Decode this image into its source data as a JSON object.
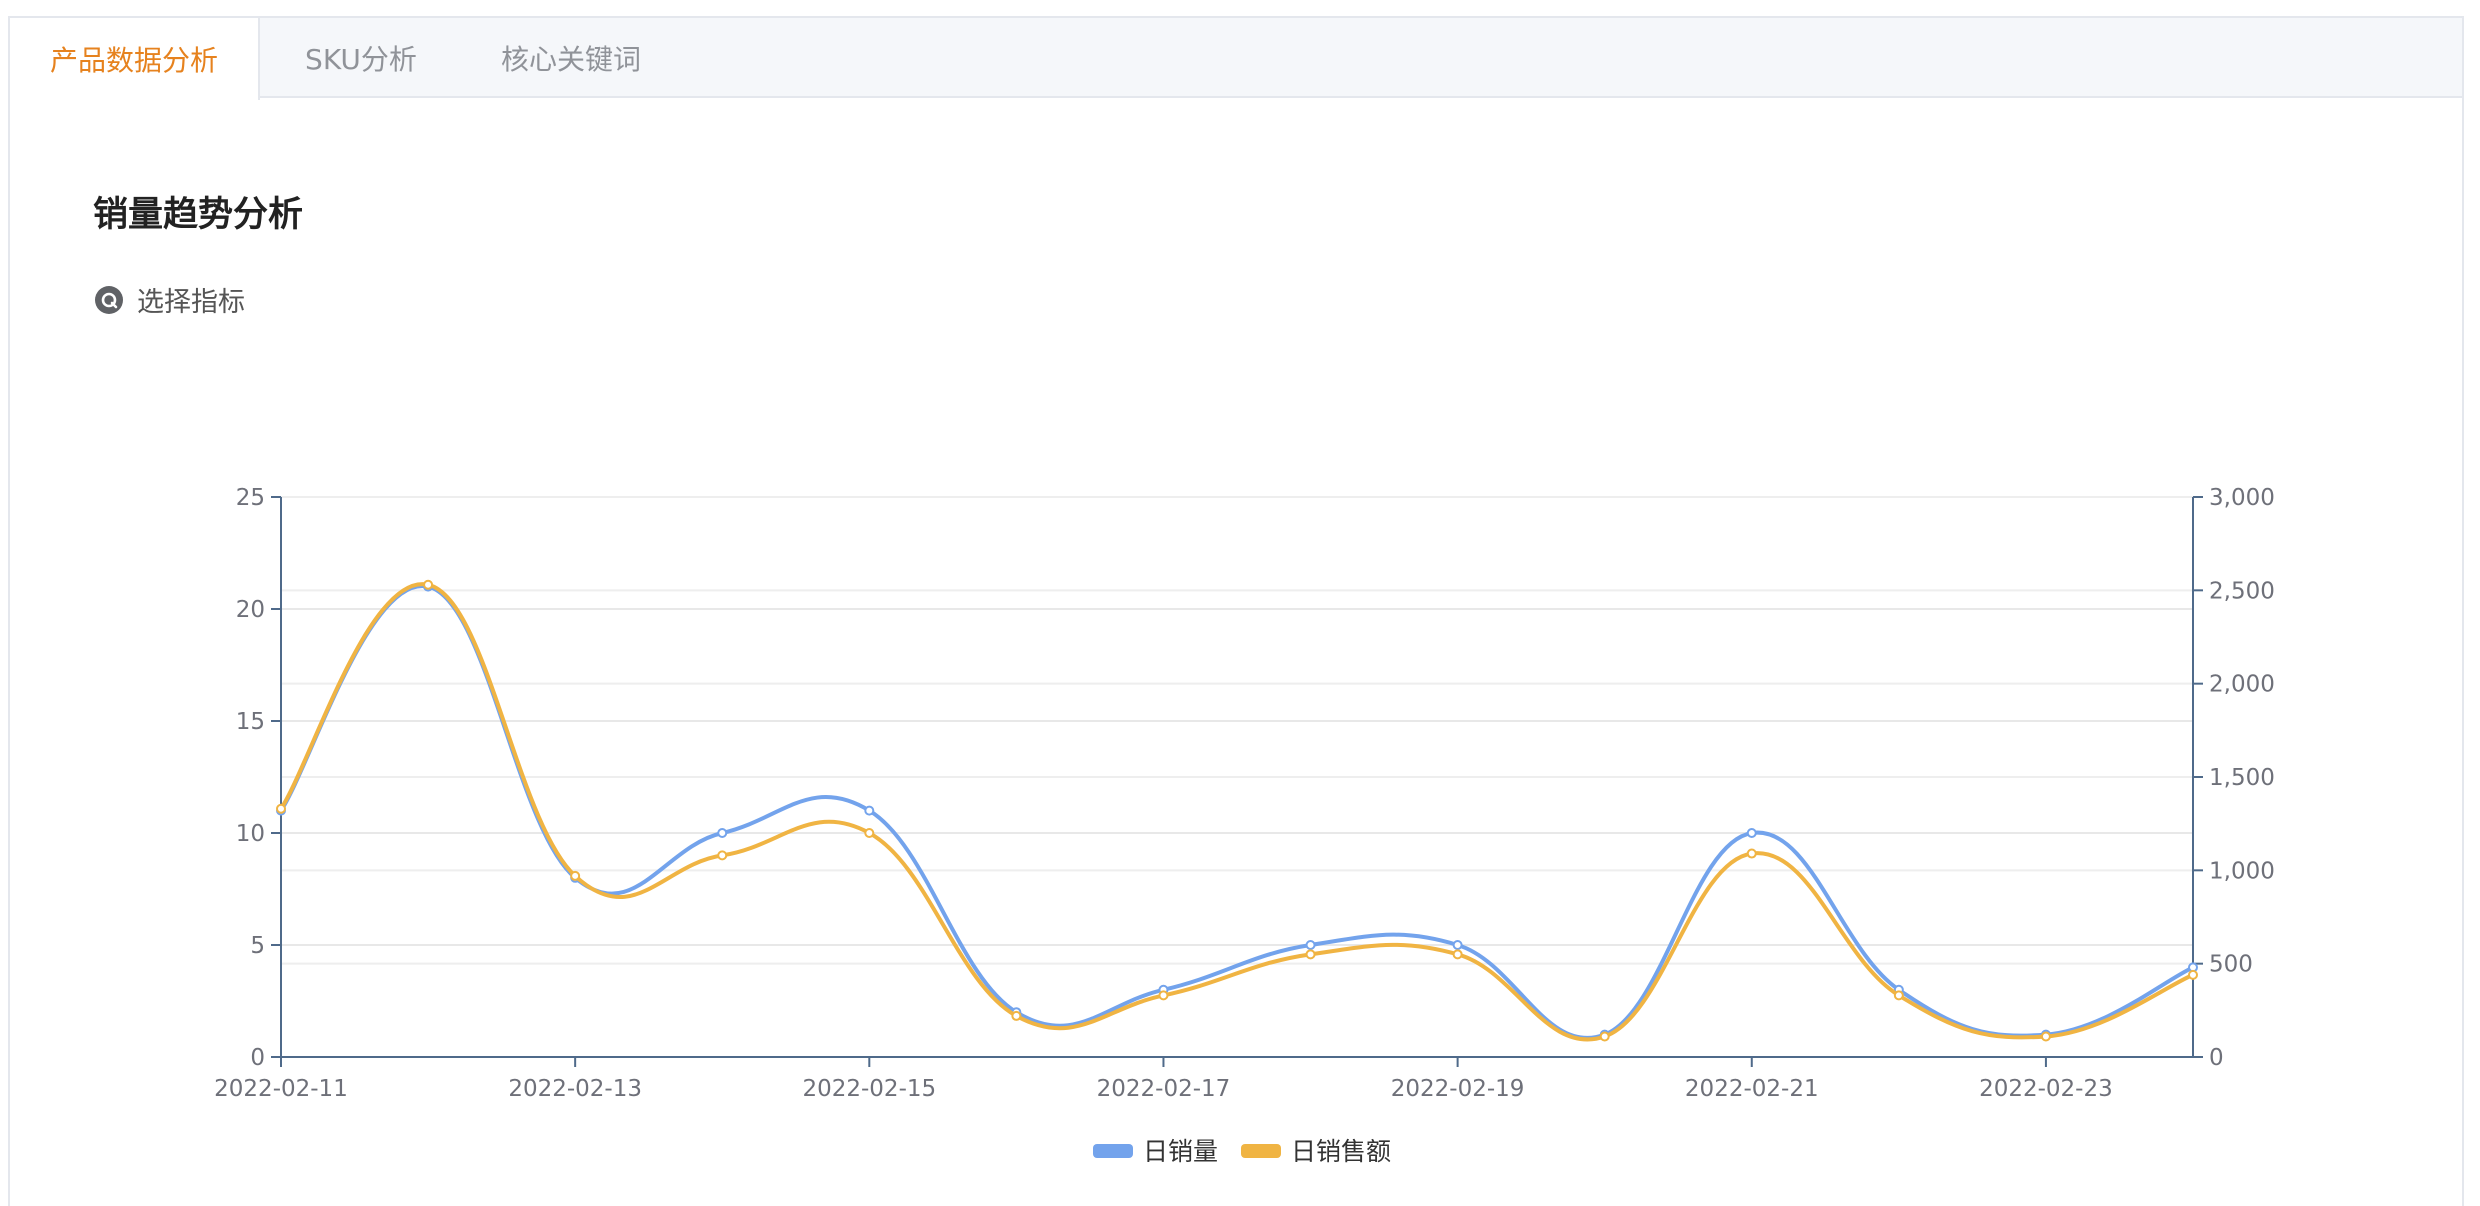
{
  "tabs": [
    {
      "label": "产品数据分析",
      "active": true
    },
    {
      "label": "SKU分析",
      "active": false
    },
    {
      "label": "核心关键词",
      "active": false
    }
  ],
  "section": {
    "title": "销量趋势分析",
    "metric_selector_label": "选择指标",
    "metric_selector_icon": "settings-gear-icon"
  },
  "chart_data": {
    "type": "line",
    "smooth": true,
    "x": [
      "2022-02-11",
      "2022-02-12",
      "2022-02-13",
      "2022-02-14",
      "2022-02-15",
      "2022-02-16",
      "2022-02-17",
      "2022-02-18",
      "2022-02-19",
      "2022-02-20",
      "2022-02-21",
      "2022-02-22",
      "2022-02-23",
      "2022-02-24"
    ],
    "x_tick_labels": [
      "2022-02-11",
      "2022-02-13",
      "2022-02-15",
      "2022-02-17",
      "2022-02-19",
      "2022-02-21",
      "2022-02-23"
    ],
    "y_left": {
      "min": 0,
      "max": 25,
      "ticks": [
        "0",
        "5",
        "10",
        "15",
        "20",
        "25"
      ]
    },
    "y_right": {
      "min": 0,
      "max": 3000,
      "ticks": [
        "0",
        "500",
        "1,000",
        "1,500",
        "2,000",
        "2,500",
        "3,000"
      ]
    },
    "grid": true,
    "legend_position": "bottom-center",
    "series": [
      {
        "name": "日销量",
        "axis": "left",
        "color": "#73a3ec",
        "values": [
          11,
          21,
          8,
          10,
          11,
          2,
          3,
          5,
          5,
          1,
          10,
          3,
          1,
          4
        ]
      },
      {
        "name": "日销售额",
        "axis": "right",
        "color": "#f0b443",
        "values": [
          1330,
          2530,
          970,
          1080,
          1200,
          220,
          330,
          550,
          550,
          110,
          1090,
          330,
          110,
          440
        ]
      }
    ]
  }
}
